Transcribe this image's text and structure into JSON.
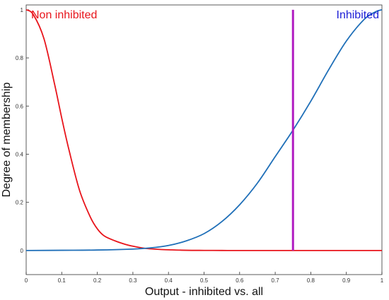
{
  "chart_data": {
    "type": "line",
    "title": "",
    "xlabel": "Output - inhibited vs. all",
    "ylabel": "Degree of membership",
    "xlim": [
      0,
      1
    ],
    "ylim": [
      -0.1,
      1.02
    ],
    "xticks": [
      "0",
      "0.1",
      "0.2",
      "0.3",
      "0.4",
      "0.5",
      "0.6",
      "0.7",
      "0.8",
      "0.9",
      "1"
    ],
    "yticks": [
      "0",
      "0.2",
      "0.4",
      "0.6",
      "0.8",
      "1"
    ],
    "grid": false,
    "series": [
      {
        "name": "Non inhibited",
        "color": "#e8141b",
        "x": [
          0,
          0.02,
          0.05,
          0.08,
          0.1,
          0.12,
          0.15,
          0.18,
          0.2,
          0.22,
          0.25,
          0.28,
          0.3,
          0.33,
          0.35,
          0.38,
          0.4,
          0.45,
          0.5,
          0.55,
          0.6,
          0.7,
          0.8,
          0.9,
          1.0
        ],
        "y": [
          1.0,
          0.98,
          0.88,
          0.69,
          0.55,
          0.42,
          0.25,
          0.14,
          0.09,
          0.06,
          0.04,
          0.025,
          0.018,
          0.01,
          0.007,
          0.004,
          0.003,
          0.001,
          0.0005,
          0.0002,
          0.0001,
          0,
          0,
          0,
          0
        ]
      },
      {
        "name": "Inhibited",
        "color": "#1f6fb8",
        "x": [
          0,
          0.1,
          0.2,
          0.3,
          0.35,
          0.4,
          0.45,
          0.5,
          0.55,
          0.6,
          0.65,
          0.7,
          0.75,
          0.8,
          0.85,
          0.9,
          0.95,
          0.98,
          1.0
        ],
        "y": [
          0,
          0.001,
          0.002,
          0.006,
          0.011,
          0.021,
          0.04,
          0.07,
          0.12,
          0.19,
          0.28,
          0.39,
          0.5,
          0.62,
          0.75,
          0.87,
          0.96,
          0.99,
          1.0
        ]
      }
    ],
    "annotations": [
      {
        "type": "vertical-line",
        "x": 0.75,
        "y_from": 0,
        "y_to": 1,
        "color": "#b01cc1"
      }
    ],
    "series_labels": {
      "left": {
        "text": "Non inhibited",
        "color": "#e8141b",
        "position": "top-left"
      },
      "right": {
        "text": "Inhibited",
        "color": "#1d1fd6",
        "position": "top-right"
      }
    }
  }
}
